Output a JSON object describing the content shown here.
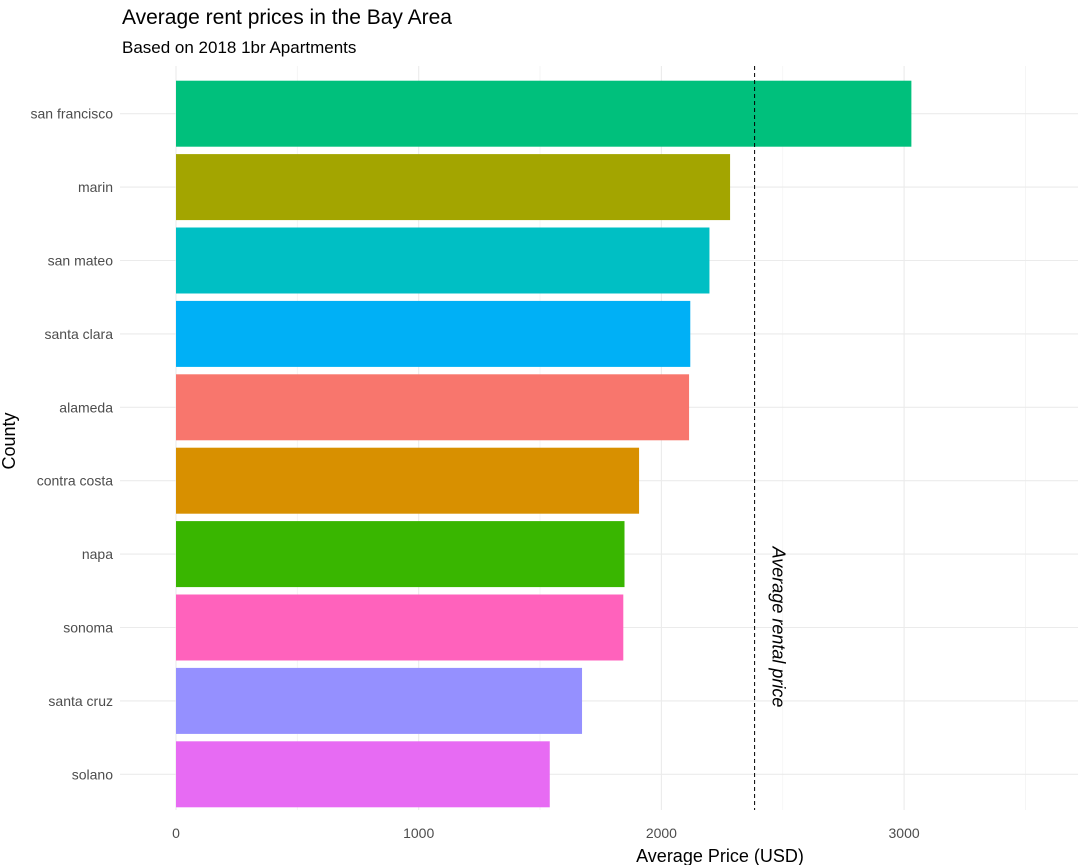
{
  "chart_data": {
    "type": "bar",
    "orientation": "horizontal",
    "title": "Average rent prices in the Bay Area",
    "subtitle": "Based on 2018 1br Apartments",
    "xlabel": "Average Price (USD)",
    "ylabel": "County",
    "xlim": [
      0,
      3700
    ],
    "xticks": [
      0,
      1000,
      2000,
      3000
    ],
    "grid": true,
    "legend": "none",
    "categories": [
      "san francisco",
      "marin",
      "san mateo",
      "santa clara",
      "alameda",
      "contra costa",
      "napa",
      "sonoma",
      "santa cruz",
      "solano"
    ],
    "values": [
      3030,
      2283,
      2198,
      2119,
      2114,
      1908,
      1848,
      1843,
      1673,
      1540
    ],
    "colors": [
      "#00C07C",
      "#A3A500",
      "#00BFC4",
      "#00B0F6",
      "#F8766D",
      "#D89000",
      "#39B600",
      "#FF62BC",
      "#9590FF",
      "#E76BF3"
    ],
    "reference_line": {
      "value": 2384,
      "style": "dashed",
      "label": "Average rental price"
    }
  }
}
